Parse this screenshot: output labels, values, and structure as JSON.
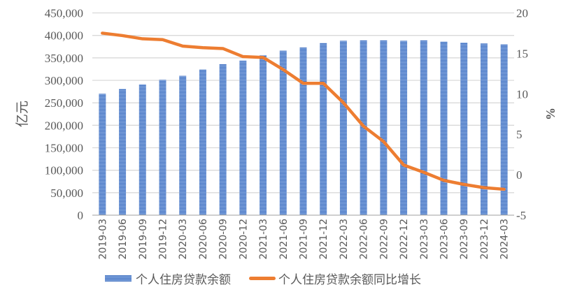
{
  "chart_data": {
    "type": "bar+line",
    "categories": [
      "2019-03",
      "2019-06",
      "2019-09",
      "2019-12",
      "2020-03",
      "2020-06",
      "2020-09",
      "2020-12",
      "2021-03",
      "2021-06",
      "2021-09",
      "2021-12",
      "2022-03",
      "2022-06",
      "2022-09",
      "2022-12",
      "2023-03",
      "2023-06",
      "2023-09",
      "2023-12",
      "2024-03"
    ],
    "series": [
      {
        "name": "个人住房贷款余额",
        "type": "bar",
        "axis": "left",
        "color": "#4472c4",
        "values": [
          270000,
          281000,
          291000,
          301000,
          310000,
          324000,
          336000,
          344000,
          356000,
          366000,
          373000,
          383000,
          388000,
          389000,
          389000,
          388000,
          389000,
          386000,
          384000,
          382000,
          380000
        ]
      },
      {
        "name": "个人住房贷款余额同比增长",
        "type": "line",
        "axis": "right",
        "color": "#ed7d31",
        "values": [
          17.5,
          17.2,
          16.8,
          16.7,
          15.9,
          15.7,
          15.6,
          14.6,
          14.5,
          13.0,
          11.3,
          11.3,
          8.9,
          6.0,
          4.1,
          1.2,
          0.3,
          -0.7,
          -1.2,
          -1.6,
          -1.8
        ]
      }
    ],
    "ylabel": "亿元",
    "y2label": "%",
    "ylim": [
      0,
      450000
    ],
    "yticks": [
      "0",
      "50,000",
      "100,000",
      "150,000",
      "200,000",
      "250,000",
      "300,000",
      "350,000",
      "400,000",
      "450,000"
    ],
    "y2lim": [
      -5,
      20
    ],
    "y2ticks": [
      "-5",
      "0",
      "5",
      "10",
      "15",
      "20"
    ],
    "grid": true,
    "legend": "bottom"
  }
}
